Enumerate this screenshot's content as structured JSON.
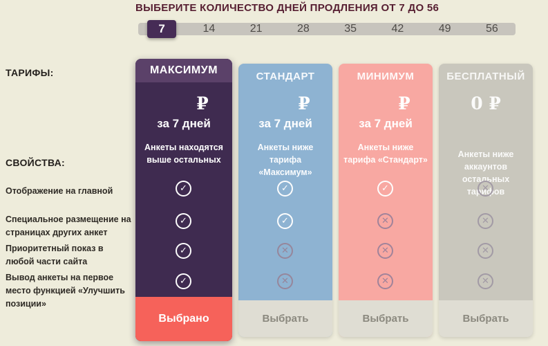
{
  "header": {
    "title": "ВЫБЕРИТЕ КОЛИЧЕСТВО ДНЕЙ ПРОДЛЕНИЯ ОТ 7 ДО 56",
    "title_color": "#561e31"
  },
  "days_selector": {
    "options": [
      "7",
      "14",
      "21",
      "28",
      "35",
      "42",
      "49",
      "56"
    ],
    "selected": "7",
    "selected_color": "#462c56",
    "track_color": "#c7c4bd"
  },
  "sidebar": {
    "tariffs_label": "ТАРИФЫ:",
    "properties_label": "СВОЙСТВА:",
    "features": [
      "Отображение на главной",
      "Специальное размещение на страницах других анкет",
      "Приоритетный показ в любой части сайта",
      "Вывод анкеты на первое место функцией «Улучшить позиции»"
    ]
  },
  "icons": {
    "check": "✓",
    "cross": "✕"
  },
  "plans": [
    {
      "name": "МАКСИМУМ",
      "price_amount": "",
      "currency": "₽",
      "period": "за 7 дней",
      "description": "Анкеты находятся выше остальных",
      "feature_states": [
        "check",
        "check",
        "check",
        "check"
      ],
      "button_label": "Выбрано",
      "state": "selected",
      "color": "#3f2b50",
      "header_color": "#5b4169",
      "button_color": "#f6625a"
    },
    {
      "name": "СТАНДАРТ",
      "price_amount": "",
      "currency": "₽",
      "period": "за 7 дней",
      "description": "Анкеты ниже тарифа «Максимум»",
      "feature_states": [
        "check",
        "check",
        "cross",
        "cross"
      ],
      "button_label": "Выбрать",
      "state": "available",
      "color": "#8eb3d2"
    },
    {
      "name": "МИНИМУМ",
      "price_amount": "",
      "currency": "₽",
      "period": "за 7 дней",
      "description": "Анкеты ниже тарифа «Стандарт»",
      "feature_states": [
        "check",
        "cross",
        "cross",
        "cross"
      ],
      "button_label": "Выбрать",
      "state": "available",
      "color": "#f8a8a2"
    },
    {
      "name": "БЕСПЛАТНЫЙ",
      "price_amount": "0",
      "currency": "₽",
      "period": "",
      "description": "Анкеты ниже аккаунтов остальных тарифов",
      "feature_states": [
        "cross",
        "cross",
        "cross",
        "cross"
      ],
      "button_label": "Выбрать",
      "state": "available",
      "color": "#c9c7bd"
    }
  ]
}
